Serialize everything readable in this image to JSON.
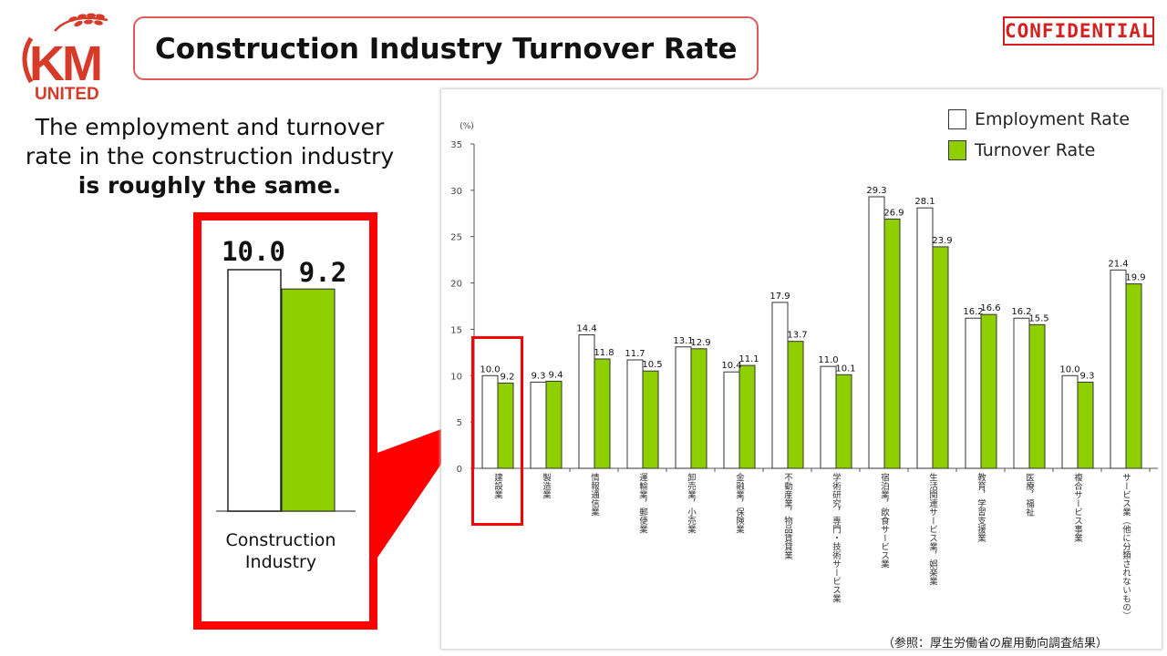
{
  "logo": {
    "letters": "KM",
    "sub": "UNITED"
  },
  "header": {
    "title": "Construction Industry Turnover Rate",
    "badge": "CONFIDENTIAL"
  },
  "description": {
    "line1": "The employment and turnover",
    "line2": "rate in the construction industry",
    "line3": "is roughly the same."
  },
  "zoom": {
    "category": "Construction Industry",
    "employment": 10.0,
    "turnover": 9.2,
    "employment_label": "10.0",
    "turnover_label": "9.2"
  },
  "legend": {
    "employment": "Employment Rate",
    "turnover": "Turnover Rate"
  },
  "source": "（参照：厚生労働省の雇用動向調査結果）",
  "colors": {
    "accent": "#ff0000",
    "turnover": "#8fcf00",
    "employment": "#ffffff",
    "title_border": "#e05a5a"
  },
  "chart_data": {
    "type": "bar",
    "unit": "(%)",
    "ylim": [
      0,
      35
    ],
    "yticks": [
      0,
      5,
      10,
      15,
      20,
      25,
      30,
      35
    ],
    "categories": [
      "建設業",
      "製造業",
      "情報通信業",
      "運輸業，郵便業",
      "卸売業，小売業",
      "金融業，保険業",
      "不動産業，物品賃貸業",
      "学術研究，専門・技術サービス業",
      "宿泊業，飲食サービス業",
      "生活関連サービス業，娯楽業",
      "教育，学習支援業",
      "医療，福祉",
      "複合サービス事業",
      "サービス業（他に分類されないもの）"
    ],
    "series": [
      {
        "name": "Employment Rate",
        "values": [
          10.0,
          9.3,
          14.4,
          11.7,
          13.1,
          10.4,
          17.9,
          11.0,
          29.3,
          28.1,
          16.2,
          16.2,
          10.0,
          21.4
        ]
      },
      {
        "name": "Turnover Rate",
        "values": [
          9.2,
          9.4,
          11.8,
          10.5,
          12.9,
          11.1,
          13.7,
          10.1,
          26.9,
          23.9,
          16.6,
          15.5,
          9.3,
          19.9
        ]
      }
    ]
  }
}
